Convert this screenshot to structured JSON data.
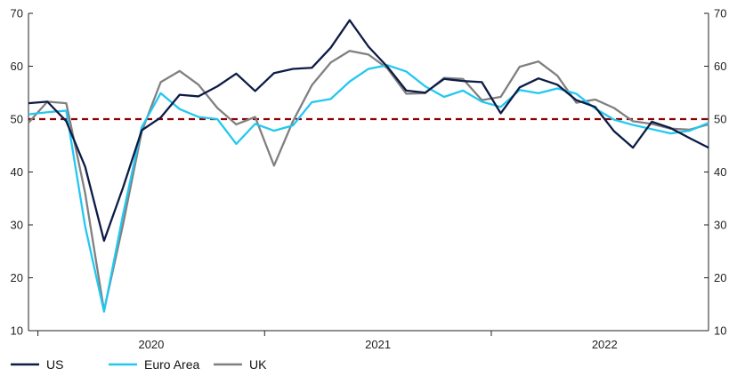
{
  "chart_data": {
    "type": "line",
    "x": [
      "2019-12",
      "2020-01",
      "2020-02",
      "2020-03",
      "2020-04",
      "2020-05",
      "2020-06",
      "2020-07",
      "2020-08",
      "2020-09",
      "2020-10",
      "2020-11",
      "2020-12",
      "2021-01",
      "2021-02",
      "2021-03",
      "2021-04",
      "2021-05",
      "2021-06",
      "2021-07",
      "2021-08",
      "2021-09",
      "2021-10",
      "2021-11",
      "2021-12",
      "2022-01",
      "2022-02",
      "2022-03",
      "2022-04",
      "2022-05",
      "2022-06",
      "2022-07",
      "2022-08",
      "2022-09",
      "2022-10",
      "2022-11",
      "2022-12"
    ],
    "x_tick_labels": [
      "2020",
      "2021",
      "2022"
    ],
    "y_ticks": [
      10,
      20,
      30,
      40,
      50,
      60,
      70
    ],
    "ylim": [
      10,
      70
    ],
    "reference_line": 50,
    "series": [
      {
        "name": "US",
        "color": "#0d1b45",
        "values": [
          53.0,
          53.3,
          49.6,
          41.0,
          27.0,
          37.0,
          47.9,
          50.3,
          54.6,
          54.3,
          56.2,
          58.6,
          55.3,
          58.7,
          59.5,
          59.7,
          63.5,
          68.7,
          63.7,
          59.9,
          55.4,
          55.0,
          57.6,
          57.2,
          57.0,
          51.1,
          56.0,
          57.7,
          56.5,
          53.6,
          52.3,
          47.7,
          44.6,
          49.5,
          48.3,
          46.4,
          44.6
        ]
      },
      {
        "name": "Euro Area",
        "color": "#22c8f0",
        "values": [
          50.9,
          51.3,
          51.6,
          29.7,
          13.6,
          31.9,
          48.5,
          54.9,
          51.9,
          50.4,
          50.0,
          45.3,
          49.1,
          47.8,
          48.8,
          53.2,
          53.8,
          57.1,
          59.5,
          60.2,
          59.0,
          56.2,
          54.2,
          55.4,
          53.3,
          52.3,
          55.5,
          54.9,
          55.8,
          54.8,
          52.0,
          49.9,
          48.9,
          48.1,
          47.3,
          47.8,
          49.3
        ]
      },
      {
        "name": "UK",
        "color": "#808080",
        "values": [
          49.3,
          53.3,
          53.0,
          36.0,
          13.8,
          30.0,
          47.7,
          57.0,
          59.1,
          56.5,
          52.1,
          49.0,
          50.4,
          41.2,
          49.6,
          56.4,
          60.7,
          62.9,
          62.2,
          59.6,
          54.8,
          54.9,
          57.8,
          57.6,
          53.6,
          54.2,
          59.9,
          60.9,
          58.2,
          53.1,
          53.7,
          52.1,
          49.6,
          49.1,
          48.2,
          48.0,
          49.0
        ]
      }
    ],
    "legend": {
      "position": "bottom-left",
      "entries": [
        "US",
        "Euro Area",
        "UK"
      ]
    },
    "dual_y_axis": true
  }
}
